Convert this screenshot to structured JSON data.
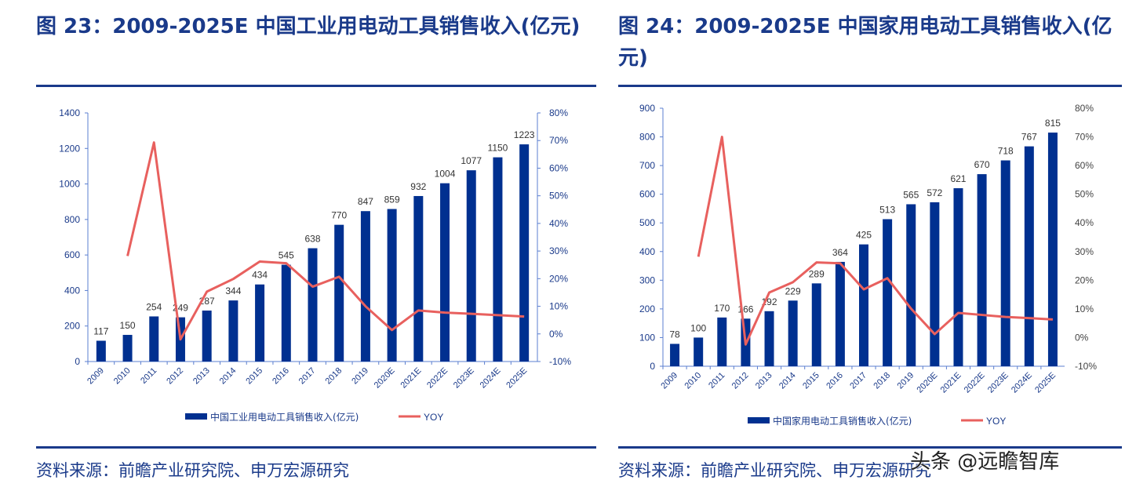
{
  "charts_meta": [
    {
      "title": "图 23：2009-2025E 中国工业用电动工具销售收入(亿元)",
      "source": "资料来源：前瞻产业研究院、申万宏源研究"
    },
    {
      "title": "图 24：2009-2025E 中国家用电动工具销售收入(亿元)",
      "source": "资料来源：前瞻产业研究院、申万宏源研究"
    }
  ],
  "watermark": "头条 @远瞻智库",
  "colors": {
    "bar": "#003090",
    "line": "#e8605e",
    "text": "#1a3a8a"
  },
  "chart_data": [
    {
      "type": "bar+line",
      "categories": [
        "2009",
        "2010",
        "2011",
        "2012",
        "2013",
        "2014",
        "2015",
        "2016",
        "2017",
        "2018",
        "2019",
        "2020E",
        "2021E",
        "2022E",
        "2023E",
        "2024E",
        "2025E"
      ],
      "series": [
        {
          "name": "中国工业用电动工具销售收入(亿元)",
          "type": "bar",
          "axis": "left",
          "values": [
            117,
            150,
            254,
            249,
            287,
            344,
            434,
            545,
            638,
            770,
            847,
            859,
            932,
            1004,
            1077,
            1150,
            1223
          ]
        },
        {
          "name": "YOY",
          "type": "line",
          "axis": "right",
          "values": [
            null,
            28.2,
            69.3,
            -2.0,
            15.3,
            19.9,
            26.2,
            25.6,
            17.1,
            20.7,
            10.0,
            1.4,
            8.5,
            7.7,
            7.3,
            6.8,
            6.3
          ]
        }
      ],
      "ylim_left": [
        0,
        1400
      ],
      "yticks_left": [
        0,
        200,
        400,
        600,
        800,
        1000,
        1200,
        1400
      ],
      "ylim_right": [
        -10,
        80
      ],
      "yticks_right": [
        "-10%",
        "0%",
        "10%",
        "20%",
        "30%",
        "40%",
        "50%",
        "60%",
        "70%",
        "80%"
      ],
      "legend": "bottom",
      "grid": false
    },
    {
      "type": "bar+line",
      "categories": [
        "2009",
        "2010",
        "2011",
        "2012",
        "2013",
        "2014",
        "2015",
        "2016",
        "2017",
        "2018",
        "2019",
        "2020E",
        "2021E",
        "2022E",
        "2023E",
        "2024E",
        "2025E"
      ],
      "series": [
        {
          "name": "中国家用电动工具销售收入(亿元)",
          "type": "bar",
          "axis": "left",
          "values": [
            78,
            100,
            170,
            166,
            192,
            229,
            289,
            364,
            425,
            513,
            565,
            572,
            621,
            670,
            718,
            767,
            815
          ]
        },
        {
          "name": "YOY",
          "type": "line",
          "axis": "right",
          "values": [
            null,
            28.2,
            70.0,
            -2.4,
            15.7,
            19.3,
            26.2,
            25.9,
            16.8,
            20.7,
            10.1,
            1.2,
            8.6,
            7.9,
            7.2,
            6.8,
            6.3
          ]
        }
      ],
      "ylim_left": [
        0,
        900
      ],
      "yticks_left": [
        0,
        100,
        200,
        300,
        400,
        500,
        600,
        700,
        800,
        900
      ],
      "ylim_right": [
        -10,
        80
      ],
      "yticks_right": [
        "-10%",
        "0%",
        "10%",
        "20%",
        "30%",
        "40%",
        "50%",
        "60%",
        "70%",
        "80%"
      ],
      "legend": "bottom",
      "grid": false
    }
  ]
}
